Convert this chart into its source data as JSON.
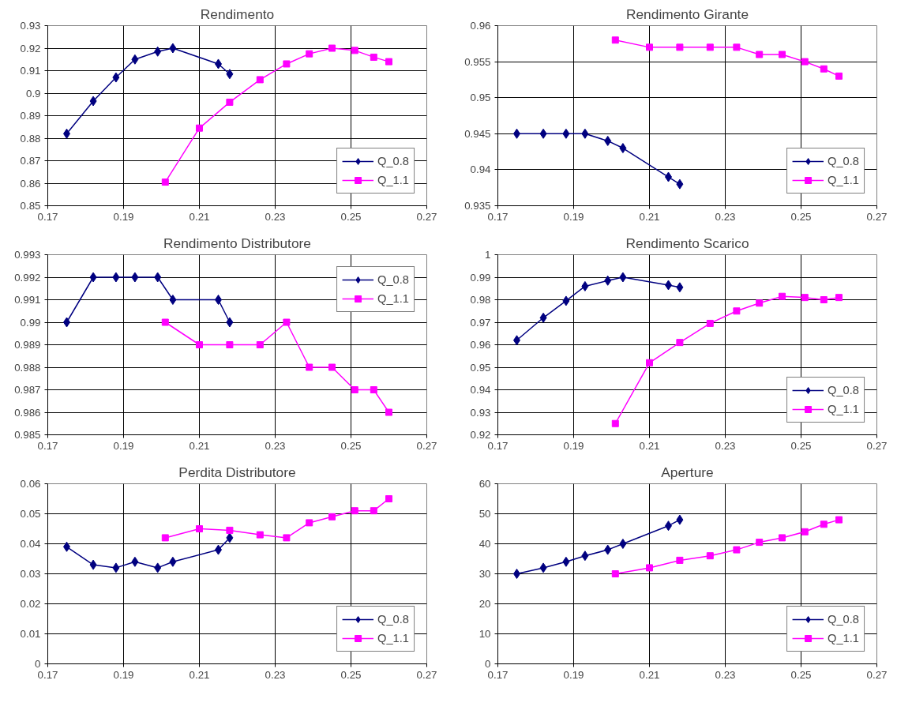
{
  "chart_data": [
    {
      "type": "line",
      "title": "Rendimento",
      "xlim": [
        0.17,
        0.27
      ],
      "xticks": [
        0.17,
        0.19,
        0.21,
        0.23,
        0.25,
        0.27
      ],
      "ylim": [
        0.85,
        0.93
      ],
      "yticks": [
        0.85,
        0.86,
        0.87,
        0.88,
        0.89,
        0.9,
        0.91,
        0.92,
        0.93
      ],
      "grid": true,
      "legend": "bottom right",
      "series": [
        {
          "name": "Q_0.8",
          "color": "#000080",
          "marker": "diamond",
          "x": [
            0.175,
            0.182,
            0.188,
            0.193,
            0.199,
            0.203,
            0.215,
            0.218
          ],
          "values": [
            0.882,
            0.8965,
            0.907,
            0.915,
            0.9185,
            0.92,
            0.913,
            0.9085
          ]
        },
        {
          "name": "Q_1.1",
          "color": "#ff00ff",
          "marker": "square",
          "x": [
            0.201,
            0.21,
            0.218,
            0.226,
            0.233,
            0.239,
            0.245,
            0.251,
            0.256,
            0.26
          ],
          "values": [
            0.8605,
            0.8845,
            0.896,
            0.906,
            0.913,
            0.9175,
            0.92,
            0.919,
            0.916,
            0.914
          ]
        }
      ]
    },
    {
      "type": "line",
      "title": "Rendimento Girante",
      "xlim": [
        0.17,
        0.27
      ],
      "xticks": [
        0.17,
        0.19,
        0.21,
        0.23,
        0.25,
        0.27
      ],
      "ylim": [
        0.935,
        0.96
      ],
      "yticks": [
        0.935,
        0.94,
        0.945,
        0.95,
        0.955,
        0.96
      ],
      "grid": true,
      "legend": "bottom right",
      "series": [
        {
          "name": "Q_0.8",
          "color": "#000080",
          "marker": "diamond",
          "x": [
            0.175,
            0.182,
            0.188,
            0.193,
            0.199,
            0.203,
            0.215,
            0.218
          ],
          "values": [
            0.945,
            0.945,
            0.945,
            0.945,
            0.944,
            0.943,
            0.939,
            0.938
          ]
        },
        {
          "name": "Q_1.1",
          "color": "#ff00ff",
          "marker": "square",
          "x": [
            0.201,
            0.21,
            0.218,
            0.226,
            0.233,
            0.239,
            0.245,
            0.251,
            0.256,
            0.26
          ],
          "values": [
            0.958,
            0.957,
            0.957,
            0.957,
            0.957,
            0.956,
            0.956,
            0.955,
            0.954,
            0.953
          ]
        }
      ]
    },
    {
      "type": "line",
      "title": "Rendimento Distributore",
      "xlim": [
        0.17,
        0.27
      ],
      "xticks": [
        0.17,
        0.19,
        0.21,
        0.23,
        0.25,
        0.27
      ],
      "ylim": [
        0.985,
        0.993
      ],
      "yticks": [
        0.985,
        0.986,
        0.987,
        0.988,
        0.989,
        0.99,
        0.991,
        0.992,
        0.993
      ],
      "grid": true,
      "legend": "top right",
      "series": [
        {
          "name": "Q_0.8",
          "color": "#000080",
          "marker": "diamond",
          "x": [
            0.175,
            0.182,
            0.188,
            0.193,
            0.199,
            0.203,
            0.215,
            0.218
          ],
          "values": [
            0.99,
            0.992,
            0.992,
            0.992,
            0.992,
            0.991,
            0.991,
            0.99
          ]
        },
        {
          "name": "Q_1.1",
          "color": "#ff00ff",
          "marker": "square",
          "x": [
            0.201,
            0.21,
            0.218,
            0.226,
            0.233,
            0.239,
            0.245,
            0.251,
            0.256,
            0.26
          ],
          "values": [
            0.99,
            0.989,
            0.989,
            0.989,
            0.99,
            0.988,
            0.988,
            0.987,
            0.987,
            0.986
          ]
        }
      ]
    },
    {
      "type": "line",
      "title": "Rendimento Scarico",
      "xlim": [
        0.17,
        0.27
      ],
      "xticks": [
        0.17,
        0.19,
        0.21,
        0.23,
        0.25,
        0.27
      ],
      "ylim": [
        0.92,
        1
      ],
      "yticks": [
        0.92,
        0.93,
        0.94,
        0.95,
        0.96,
        0.97,
        0.98,
        0.99,
        1
      ],
      "grid": true,
      "legend": "bottom right",
      "series": [
        {
          "name": "Q_0.8",
          "color": "#000080",
          "marker": "diamond",
          "x": [
            0.175,
            0.182,
            0.188,
            0.193,
            0.199,
            0.203,
            0.215,
            0.218
          ],
          "values": [
            0.962,
            0.972,
            0.9795,
            0.986,
            0.9885,
            0.99,
            0.9865,
            0.9855
          ]
        },
        {
          "name": "Q_1.1",
          "color": "#ff00ff",
          "marker": "square",
          "x": [
            0.201,
            0.21,
            0.218,
            0.226,
            0.233,
            0.239,
            0.245,
            0.251,
            0.256,
            0.26
          ],
          "values": [
            0.925,
            0.952,
            0.961,
            0.9695,
            0.975,
            0.9785,
            0.9815,
            0.981,
            0.98,
            0.981
          ]
        }
      ]
    },
    {
      "type": "line",
      "title": "Perdita Distributore",
      "xlim": [
        0.17,
        0.27
      ],
      "xticks": [
        0.17,
        0.19,
        0.21,
        0.23,
        0.25,
        0.27
      ],
      "ylim": [
        0,
        0.06
      ],
      "yticks": [
        0,
        0.01,
        0.02,
        0.03,
        0.04,
        0.05,
        0.06
      ],
      "grid": true,
      "legend": "bottom right",
      "series": [
        {
          "name": "Q_0.8",
          "color": "#000080",
          "marker": "diamond",
          "x": [
            0.175,
            0.182,
            0.188,
            0.193,
            0.199,
            0.203,
            0.215,
            0.218
          ],
          "values": [
            0.039,
            0.033,
            0.032,
            0.034,
            0.032,
            0.034,
            0.038,
            0.042
          ]
        },
        {
          "name": "Q_1.1",
          "color": "#ff00ff",
          "marker": "square",
          "x": [
            0.201,
            0.21,
            0.218,
            0.226,
            0.233,
            0.239,
            0.245,
            0.251,
            0.256,
            0.26
          ],
          "values": [
            0.042,
            0.045,
            0.0445,
            0.043,
            0.042,
            0.047,
            0.049,
            0.051,
            0.051,
            0.055
          ]
        }
      ]
    },
    {
      "type": "line",
      "title": "Aperture",
      "xlim": [
        0.17,
        0.27
      ],
      "xticks": [
        0.17,
        0.19,
        0.21,
        0.23,
        0.25,
        0.27
      ],
      "ylim": [
        0,
        60
      ],
      "yticks": [
        0,
        10,
        20,
        30,
        40,
        50,
        60
      ],
      "grid": true,
      "legend": "bottom right",
      "series": [
        {
          "name": "Q_0.8",
          "color": "#000080",
          "marker": "diamond",
          "x": [
            0.175,
            0.182,
            0.188,
            0.193,
            0.199,
            0.203,
            0.215,
            0.218
          ],
          "values": [
            30,
            32,
            34,
            36,
            38,
            40,
            46,
            48
          ]
        },
        {
          "name": "Q_1.1",
          "color": "#ff00ff",
          "marker": "square",
          "x": [
            0.201,
            0.21,
            0.218,
            0.226,
            0.233,
            0.239,
            0.245,
            0.251,
            0.256,
            0.26
          ],
          "values": [
            30,
            32,
            34.5,
            36,
            38,
            40.5,
            42,
            44,
            46.5,
            48
          ]
        }
      ]
    }
  ]
}
